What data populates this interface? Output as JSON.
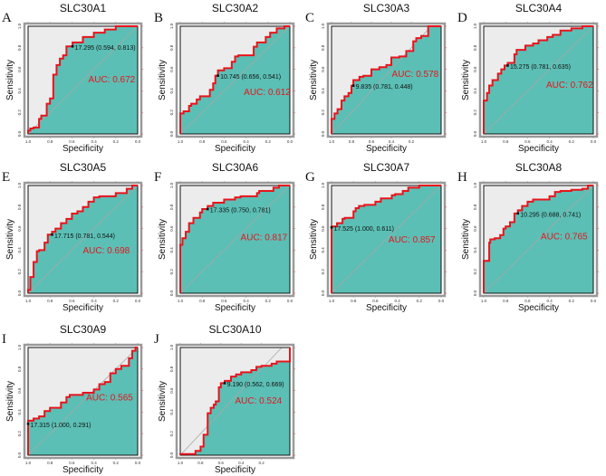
{
  "colors": {
    "curve": "#e8141c",
    "auc_fill": "#5bbfb5",
    "background": "#ececec",
    "auc_text": "#e8141c"
  },
  "chart_data": [
    {
      "type": "line",
      "panel": "A",
      "title": "SLC30A1",
      "xlabel": "Specificity",
      "ylabel": "Sensitivity",
      "xlim": [
        1,
        0
      ],
      "ylim": [
        0,
        1
      ],
      "x_ticks": [
        "1.0",
        "0.8",
        "0.6",
        "0.4",
        "0.2",
        "0.0"
      ],
      "y_ticks": [
        "0.0",
        "0.2",
        "0.4",
        "0.6",
        "0.8",
        "1.0"
      ],
      "auc_label": "AUC: 0.672",
      "threshold": {
        "label": "17.295 (0.594, 0.813)",
        "specificity": 0.594,
        "sensitivity": 0.813
      },
      "points": [
        [
          1,
          0
        ],
        [
          0.98,
          0.03
        ],
        [
          0.95,
          0.05
        ],
        [
          0.9,
          0.06
        ],
        [
          0.88,
          0.14
        ],
        [
          0.83,
          0.17
        ],
        [
          0.8,
          0.28
        ],
        [
          0.77,
          0.33
        ],
        [
          0.74,
          0.55
        ],
        [
          0.71,
          0.64
        ],
        [
          0.68,
          0.7
        ],
        [
          0.65,
          0.73
        ],
        [
          0.594,
          0.813
        ],
        [
          0.5,
          0.85
        ],
        [
          0.4,
          0.9
        ],
        [
          0.3,
          0.94
        ],
        [
          0.2,
          0.97
        ],
        [
          0,
          1
        ]
      ]
    },
    {
      "type": "line",
      "panel": "B",
      "title": "SLC30A2",
      "xlabel": "Specificity",
      "ylabel": "Sensitivity",
      "xlim": [
        1,
        0
      ],
      "ylim": [
        0,
        1
      ],
      "x_ticks": [
        "1.0",
        "0.8",
        "0.6",
        "0.4",
        "0.2",
        "0.0"
      ],
      "y_ticks": [
        "0.0",
        "0.2",
        "0.4",
        "0.6",
        "0.8",
        "1.0"
      ],
      "auc_label": "AUC: 0.612",
      "threshold": {
        "label": "10.745 (0.656, 0.541)",
        "specificity": 0.656,
        "sensitivity": 0.541
      },
      "points": [
        [
          1,
          0
        ],
        [
          1,
          0.13
        ],
        [
          0.97,
          0.19
        ],
        [
          0.92,
          0.21
        ],
        [
          0.9,
          0.26
        ],
        [
          0.85,
          0.28
        ],
        [
          0.82,
          0.32
        ],
        [
          0.73,
          0.35
        ],
        [
          0.7,
          0.41
        ],
        [
          0.68,
          0.47
        ],
        [
          0.656,
          0.541
        ],
        [
          0.6,
          0.59
        ],
        [
          0.53,
          0.61
        ],
        [
          0.5,
          0.67
        ],
        [
          0.47,
          0.72
        ],
        [
          0.33,
          0.73
        ],
        [
          0.3,
          0.81
        ],
        [
          0.22,
          0.85
        ],
        [
          0.18,
          0.9
        ],
        [
          0.12,
          0.94
        ],
        [
          0.05,
          0.98
        ],
        [
          0,
          1
        ]
      ]
    },
    {
      "type": "line",
      "panel": "C",
      "title": "SLC30A3",
      "xlabel": "Specificity",
      "ylabel": "Sensitivity",
      "xlim": [
        1,
        -0.1
      ],
      "ylim": [
        0,
        1
      ],
      "x_ticks": [
        "1.0",
        "0.8",
        "0.6",
        "0.4",
        "0.2"
      ],
      "y_ticks": [
        "0.0",
        "0.2",
        "0.4",
        "0.6",
        "0.8",
        "1.0"
      ],
      "auc_label": "AUC: 0.578",
      "threshold": {
        "label": "9.835 (0.781, 0.448)",
        "specificity": 0.781,
        "sensitivity": 0.448
      },
      "points": [
        [
          1,
          0
        ],
        [
          1,
          0.08
        ],
        [
          0.97,
          0.14
        ],
        [
          0.94,
          0.19
        ],
        [
          0.9,
          0.23
        ],
        [
          0.87,
          0.31
        ],
        [
          0.83,
          0.35
        ],
        [
          0.8,
          0.38
        ],
        [
          0.781,
          0.448
        ],
        [
          0.72,
          0.5
        ],
        [
          0.68,
          0.53
        ],
        [
          0.6,
          0.54
        ],
        [
          0.52,
          0.6
        ],
        [
          0.45,
          0.62
        ],
        [
          0.4,
          0.64
        ],
        [
          0.32,
          0.71
        ],
        [
          0.25,
          0.72
        ],
        [
          0.18,
          0.77
        ],
        [
          0.15,
          0.86
        ],
        [
          0.1,
          0.89
        ],
        [
          0.03,
          0.91
        ],
        [
          0.02,
          1
        ],
        [
          -0.1,
          1
        ]
      ]
    },
    {
      "type": "line",
      "panel": "D",
      "title": "SLC30A4",
      "xlabel": "Specificity",
      "ylabel": "Sensitivity",
      "xlim": [
        1,
        0
      ],
      "ylim": [
        0,
        1
      ],
      "x_ticks": [
        "1.0",
        "0.8",
        "0.6",
        "0.4",
        "0.2",
        "0.0"
      ],
      "y_ticks": [
        "0.0",
        "0.2",
        "0.4",
        "0.6",
        "0.8",
        "1.0"
      ],
      "auc_label": "AUC: 0.762",
      "threshold": {
        "label": "15.275 (0.781, 0.635)",
        "specificity": 0.781,
        "sensitivity": 0.635
      },
      "points": [
        [
          1,
          0
        ],
        [
          1,
          0.28
        ],
        [
          0.97,
          0.31
        ],
        [
          0.95,
          0.38
        ],
        [
          0.92,
          0.45
        ],
        [
          0.87,
          0.5
        ],
        [
          0.84,
          0.56
        ],
        [
          0.81,
          0.6
        ],
        [
          0.781,
          0.635
        ],
        [
          0.72,
          0.66
        ],
        [
          0.7,
          0.74
        ],
        [
          0.62,
          0.78
        ],
        [
          0.55,
          0.82
        ],
        [
          0.5,
          0.84
        ],
        [
          0.42,
          0.87
        ],
        [
          0.37,
          0.9
        ],
        [
          0.3,
          0.92
        ],
        [
          0.2,
          0.96
        ],
        [
          0.1,
          0.98
        ],
        [
          0,
          1
        ]
      ]
    },
    {
      "type": "line",
      "panel": "E",
      "title": "SLC30A5",
      "xlabel": "Specificity",
      "ylabel": "Sensitivity",
      "xlim": [
        1,
        0
      ],
      "ylim": [
        0,
        1
      ],
      "x_ticks": [
        "1.0",
        "0.8",
        "0.6",
        "0.4",
        "0.2",
        "0.0"
      ],
      "y_ticks": [
        "0.0",
        "0.2",
        "0.4",
        "0.6",
        "0.8",
        "1.0"
      ],
      "auc_label": "AUC: 0.698",
      "threshold": {
        "label": "17.715 (0.781, 0.544)",
        "specificity": 0.781,
        "sensitivity": 0.544
      },
      "points": [
        [
          1,
          0
        ],
        [
          0.98,
          0.03
        ],
        [
          0.95,
          0.15
        ],
        [
          0.92,
          0.29
        ],
        [
          0.9,
          0.39
        ],
        [
          0.85,
          0.4
        ],
        [
          0.82,
          0.47
        ],
        [
          0.781,
          0.544
        ],
        [
          0.75,
          0.57
        ],
        [
          0.7,
          0.6
        ],
        [
          0.65,
          0.65
        ],
        [
          0.6,
          0.69
        ],
        [
          0.55,
          0.74
        ],
        [
          0.5,
          0.76
        ],
        [
          0.45,
          0.8
        ],
        [
          0.4,
          0.85
        ],
        [
          0.35,
          0.89
        ],
        [
          0.2,
          0.9
        ],
        [
          0.1,
          0.93
        ],
        [
          0.05,
          0.97
        ],
        [
          0,
          1
        ]
      ]
    },
    {
      "type": "line",
      "panel": "F",
      "title": "SLC30A6",
      "xlabel": "Specificity",
      "ylabel": "Sensitivity",
      "xlim": [
        1,
        0
      ],
      "ylim": [
        0,
        1
      ],
      "x_ticks": [
        "1.0",
        "0.8",
        "0.6",
        "0.4",
        "0.2",
        "0.0"
      ],
      "y_ticks": [
        "0.0",
        "0.2",
        "0.4",
        "0.6",
        "0.8",
        "1.0"
      ],
      "auc_label": "AUC: 0.817",
      "threshold": {
        "label": "17.335 (0.750, 0.781)",
        "specificity": 0.75,
        "sensitivity": 0.781
      },
      "points": [
        [
          1,
          0
        ],
        [
          1,
          0.21
        ],
        [
          0.98,
          0.45
        ],
        [
          0.95,
          0.51
        ],
        [
          0.92,
          0.57
        ],
        [
          0.88,
          0.65
        ],
        [
          0.82,
          0.7
        ],
        [
          0.8,
          0.75
        ],
        [
          0.75,
          0.781
        ],
        [
          0.7,
          0.81
        ],
        [
          0.6,
          0.84
        ],
        [
          0.5,
          0.87
        ],
        [
          0.45,
          0.89
        ],
        [
          0.3,
          0.9
        ],
        [
          0.28,
          0.93
        ],
        [
          0.15,
          0.95
        ],
        [
          0.1,
          0.98
        ],
        [
          0,
          1
        ]
      ]
    },
    {
      "type": "line",
      "panel": "G",
      "title": "SLC30A7",
      "xlabel": "Specificity",
      "ylabel": "Sensitivity",
      "xlim": [
        1,
        0
      ],
      "ylim": [
        0,
        1
      ],
      "x_ticks": [
        "1.0",
        "0.8",
        "0.6",
        "0.4",
        "0.2",
        "0.0"
      ],
      "y_ticks": [
        "0.0",
        "0.2",
        "0.4",
        "0.6",
        "0.8",
        "1.0"
      ],
      "auc_label": "AUC: 0.857",
      "threshold": {
        "label": "17.525 (1.000, 0.611)",
        "specificity": 1.0,
        "sensitivity": 0.611
      },
      "points": [
        [
          1,
          0
        ],
        [
          1,
          0.611
        ],
        [
          0.95,
          0.62
        ],
        [
          0.9,
          0.65
        ],
        [
          0.88,
          0.69
        ],
        [
          0.8,
          0.7
        ],
        [
          0.78,
          0.76
        ],
        [
          0.75,
          0.79
        ],
        [
          0.7,
          0.81
        ],
        [
          0.6,
          0.82
        ],
        [
          0.55,
          0.85
        ],
        [
          0.45,
          0.88
        ],
        [
          0.42,
          0.91
        ],
        [
          0.35,
          0.92
        ],
        [
          0.3,
          0.95
        ],
        [
          0.2,
          0.98
        ],
        [
          0.1,
          1
        ],
        [
          0,
          1
        ]
      ]
    },
    {
      "type": "line",
      "panel": "H",
      "title": "SLC30A8",
      "xlabel": "Specificity",
      "ylabel": "Sensitivity",
      "xlim": [
        1,
        0
      ],
      "ylim": [
        0,
        1
      ],
      "x_ticks": [
        "1.0",
        "0.8",
        "0.6",
        "0.4",
        "0.2",
        "0.0"
      ],
      "y_ticks": [
        "0.0",
        "0.2",
        "0.4",
        "0.6",
        "0.8",
        "1.0"
      ],
      "auc_label": "AUC: 0.765",
      "threshold": {
        "label": "10.295 (0.688, 0.741)",
        "specificity": 0.688,
        "sensitivity": 0.741
      },
      "points": [
        [
          1,
          0
        ],
        [
          1,
          0.29
        ],
        [
          0.95,
          0.3
        ],
        [
          0.94,
          0.47
        ],
        [
          0.9,
          0.5
        ],
        [
          0.85,
          0.51
        ],
        [
          0.82,
          0.54
        ],
        [
          0.8,
          0.6
        ],
        [
          0.76,
          0.62
        ],
        [
          0.72,
          0.66
        ],
        [
          0.688,
          0.741
        ],
        [
          0.65,
          0.77
        ],
        [
          0.6,
          0.81
        ],
        [
          0.55,
          0.85
        ],
        [
          0.4,
          0.87
        ],
        [
          0.35,
          0.9
        ],
        [
          0.3,
          0.94
        ],
        [
          0.2,
          0.95
        ],
        [
          0.1,
          0.96
        ],
        [
          0.05,
          0.97
        ],
        [
          0,
          1
        ]
      ]
    },
    {
      "type": "line",
      "panel": "I",
      "title": "SLC30A9",
      "xlabel": "Specificity",
      "ylabel": "Sensitivity",
      "xlim": [
        1,
        0
      ],
      "ylim": [
        0,
        1
      ],
      "x_ticks": [
        "1.0",
        "0.8",
        "0.6",
        "0.4",
        "0.2",
        "0.0"
      ],
      "y_ticks": [
        "0.0",
        "0.2",
        "0.4",
        "0.6",
        "0.8",
        "1.0"
      ],
      "auc_label": "AUC: 0.565",
      "threshold": {
        "label": "17.315 (1.000, 0.291)",
        "specificity": 1.0,
        "sensitivity": 0.291
      },
      "points": [
        [
          1,
          0
        ],
        [
          1,
          0.291
        ],
        [
          0.95,
          0.32
        ],
        [
          0.9,
          0.34
        ],
        [
          0.85,
          0.36
        ],
        [
          0.8,
          0.41
        ],
        [
          0.7,
          0.44
        ],
        [
          0.65,
          0.49
        ],
        [
          0.62,
          0.54
        ],
        [
          0.5,
          0.56
        ],
        [
          0.4,
          0.58
        ],
        [
          0.35,
          0.61
        ],
        [
          0.3,
          0.66
        ],
        [
          0.25,
          0.68
        ],
        [
          0.2,
          0.76
        ],
        [
          0.15,
          0.8
        ],
        [
          0.08,
          0.83
        ],
        [
          0.05,
          0.9
        ],
        [
          0.02,
          0.97
        ],
        [
          0,
          1
        ]
      ]
    },
    {
      "type": "line",
      "panel": "J",
      "title": "SLC30A10",
      "xlabel": "Specificity",
      "ylabel": "Sensitivity",
      "xlim": [
        1,
        -0.08
      ],
      "ylim": [
        0,
        1
      ],
      "x_ticks": [
        "1.0",
        "0.8",
        "0.6",
        "0.4",
        "0.2"
      ],
      "y_ticks": [
        "0.0",
        "0.2",
        "0.4",
        "0.6",
        "0.8",
        "1.0"
      ],
      "auc_label": "AUC: 0.524",
      "threshold": {
        "label": "9.190 (0.562, 0.669)",
        "specificity": 0.562,
        "sensitivity": 0.669
      },
      "points": [
        [
          1,
          0
        ],
        [
          0.85,
          0.01
        ],
        [
          0.8,
          0.04
        ],
        [
          0.77,
          0.08
        ],
        [
          0.73,
          0.19
        ],
        [
          0.7,
          0.39
        ],
        [
          0.67,
          0.44
        ],
        [
          0.65,
          0.47
        ],
        [
          0.62,
          0.5
        ],
        [
          0.6,
          0.63
        ],
        [
          0.562,
          0.669
        ],
        [
          0.5,
          0.69
        ],
        [
          0.45,
          0.73
        ],
        [
          0.4,
          0.75
        ],
        [
          0.3,
          0.77
        ],
        [
          0.25,
          0.79
        ],
        [
          0.2,
          0.82
        ],
        [
          0.1,
          0.83
        ],
        [
          0.05,
          0.85
        ],
        [
          -0.08,
          0.87
        ],
        [
          -0.08,
          1
        ]
      ]
    }
  ]
}
